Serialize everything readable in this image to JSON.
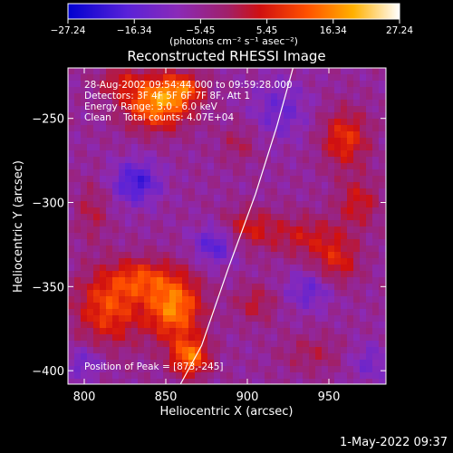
{
  "chart_data": {
    "type": "heatmap",
    "title": "Reconstructed RHESSI Image",
    "xlabel": "Heliocentric X (arcsec)",
    "ylabel": "Heliocentric Y (arcsec)",
    "xlim": [
      790,
      985
    ],
    "ylim": [
      -408,
      -220
    ],
    "xticks": [
      800,
      850,
      900,
      950
    ],
    "yticks": [
      -250,
      -300,
      -350,
      -400
    ],
    "ytick_labels": [
      "−250",
      "−300",
      "−350",
      "−400"
    ],
    "colorbar": {
      "ticks": [
        -27.24,
        -16.34,
        -5.45,
        5.45,
        16.34,
        27.24
      ],
      "tick_labels": [
        "−27.24",
        "−16.34",
        "−5.45",
        "5.45",
        "16.34",
        "27.24"
      ],
      "range": [
        -27.24,
        27.24
      ],
      "unit_label": "(photons cm⁻² s⁻¹ asec⁻²)"
    },
    "annotations": [
      "28-Aug-2002 09:54:44.000 to 09:59:28.000",
      "Detectors: 3F 4F 5F 6F 7F 8F, Att 1",
      "Energy Range: 3.0 - 6.0 keV",
      "Clean    Total counts: 4.07E+04"
    ],
    "peak_label": "Position of Peak = [873,-245]",
    "peak": [
      873,
      -245
    ],
    "grid": false,
    "limb_curve": [
      [
        859,
        -408
      ],
      [
        872,
        -385
      ],
      [
        888,
        -340
      ],
      [
        905,
        -295
      ],
      [
        918,
        -255
      ],
      [
        928,
        -220
      ]
    ],
    "blobs": [
      {
        "x": 845,
        "y": -240,
        "amp": 24,
        "sx": 14,
        "sy": 11
      },
      {
        "x": 862,
        "y": -232,
        "amp": 12,
        "sx": 8,
        "sy": 6
      },
      {
        "x": 820,
        "y": -228,
        "amp": 8,
        "sx": 9,
        "sy": 6
      },
      {
        "x": 815,
        "y": -362,
        "amp": 16,
        "sx": 14,
        "sy": 16
      },
      {
        "x": 855,
        "y": -362,
        "amp": 22,
        "sx": 12,
        "sy": 14
      },
      {
        "x": 865,
        "y": -392,
        "amp": 20,
        "sx": 8,
        "sy": 8
      },
      {
        "x": 835,
        "y": -345,
        "amp": 12,
        "sx": 12,
        "sy": 8
      },
      {
        "x": 960,
        "y": -262,
        "amp": 14,
        "sx": 10,
        "sy": 12
      },
      {
        "x": 968,
        "y": -300,
        "amp": 10,
        "sx": 9,
        "sy": 10
      },
      {
        "x": 935,
        "y": -320,
        "amp": 9,
        "sx": 16,
        "sy": 9
      },
      {
        "x": 900,
        "y": -315,
        "amp": 10,
        "sx": 12,
        "sy": 8
      },
      {
        "x": 955,
        "y": -335,
        "amp": 11,
        "sx": 10,
        "sy": 10
      },
      {
        "x": 905,
        "y": -360,
        "amp": 8,
        "sx": 9,
        "sy": 8
      },
      {
        "x": 940,
        "y": -390,
        "amp": 6,
        "sx": 14,
        "sy": 8
      },
      {
        "x": 805,
        "y": -305,
        "amp": 7,
        "sx": 7,
        "sy": 12
      },
      {
        "x": 895,
        "y": -265,
        "amp": 6,
        "sx": 8,
        "sy": 8
      }
    ],
    "dips": [
      {
        "x": 832,
        "y": -288,
        "amp": 14,
        "sx": 10,
        "sy": 9
      },
      {
        "x": 880,
        "y": -325,
        "amp": 12,
        "sx": 9,
        "sy": 8
      },
      {
        "x": 920,
        "y": -245,
        "amp": 8,
        "sx": 12,
        "sy": 12
      },
      {
        "x": 938,
        "y": -352,
        "amp": 9,
        "sx": 10,
        "sy": 8
      },
      {
        "x": 800,
        "y": -395,
        "amp": 8,
        "sx": 8,
        "sy": 7
      },
      {
        "x": 975,
        "y": -395,
        "amp": 7,
        "sx": 9,
        "sy": 8
      }
    ],
    "baseline": -6
  },
  "footer": {
    "timestamp": "1-May-2022 09:37"
  }
}
